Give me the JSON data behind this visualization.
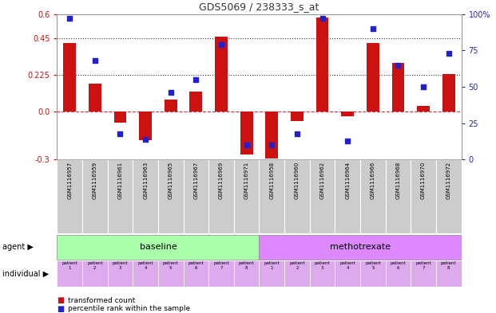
{
  "title": "GDS5069 / 238333_s_at",
  "samples": [
    "GSM1116957",
    "GSM1116959",
    "GSM1116961",
    "GSM1116963",
    "GSM1116965",
    "GSM1116967",
    "GSM1116969",
    "GSM1116971",
    "GSM1116958",
    "GSM1116960",
    "GSM1116962",
    "GSM1116964",
    "GSM1116966",
    "GSM1116968",
    "GSM1116970",
    "GSM1116972"
  ],
  "transformed_count": [
    0.42,
    0.17,
    -0.07,
    -0.18,
    0.07,
    0.12,
    0.46,
    -0.27,
    -0.295,
    -0.06,
    0.58,
    -0.03,
    0.42,
    0.3,
    0.03,
    0.23
  ],
  "percentile_rank": [
    97,
    68,
    18,
    14,
    46,
    55,
    79,
    10,
    10,
    18,
    97,
    13,
    90,
    65,
    50,
    73
  ],
  "ylim_left": [
    -0.3,
    0.6
  ],
  "ylim_right": [
    0,
    100
  ],
  "yticks_left": [
    -0.3,
    0.0,
    0.225,
    0.45,
    0.6
  ],
  "yticks_right": [
    0,
    25,
    50,
    75,
    100
  ],
  "hlines": [
    0.225,
    0.45
  ],
  "bar_color": "#cc1111",
  "dot_color": "#2222cc",
  "baseline_color": "#aaffaa",
  "methotrexate_color": "#dd88ff",
  "individual_bg": "#ddaaff",
  "agent_label": "agent",
  "individual_label": "individual",
  "baseline_label": "baseline",
  "methotrexate_label": "methotrexate",
  "n_baseline": 8,
  "n_methotrexate": 8,
  "legend_bar_label": "transformed count",
  "legend_dot_label": "percentile rank within the sample",
  "title_color": "#333333",
  "left_axis_color": "#cc1111",
  "right_axis_color": "#2222cc",
  "zero_line_color": "#cc3333",
  "grid_line_color": "#333333",
  "bg_color": "#ffffff"
}
